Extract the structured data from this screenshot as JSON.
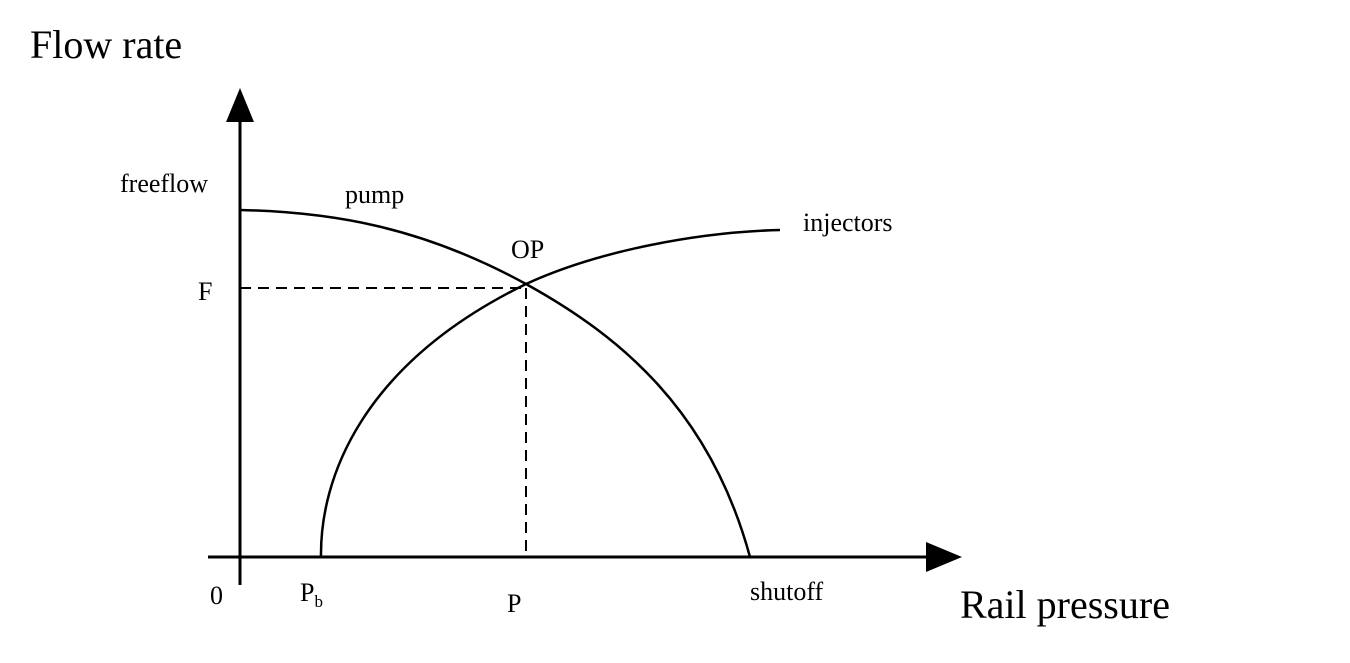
{
  "axes": {
    "y_title": "Flow rate",
    "x_title": "Rail pressure"
  },
  "labels": {
    "freeflow": "freeflow",
    "pump": "pump",
    "injectors": "injectors",
    "operating_point": "OP",
    "flow_value": "F",
    "origin": "0",
    "pb_main": "P",
    "pb_sub": "b",
    "pressure_value": "P",
    "shutoff": "shutoff"
  },
  "curves": [
    {
      "name": "pump"
    },
    {
      "name": "injectors"
    }
  ],
  "colors": {
    "line": "#000000",
    "background": "#ffffff"
  }
}
